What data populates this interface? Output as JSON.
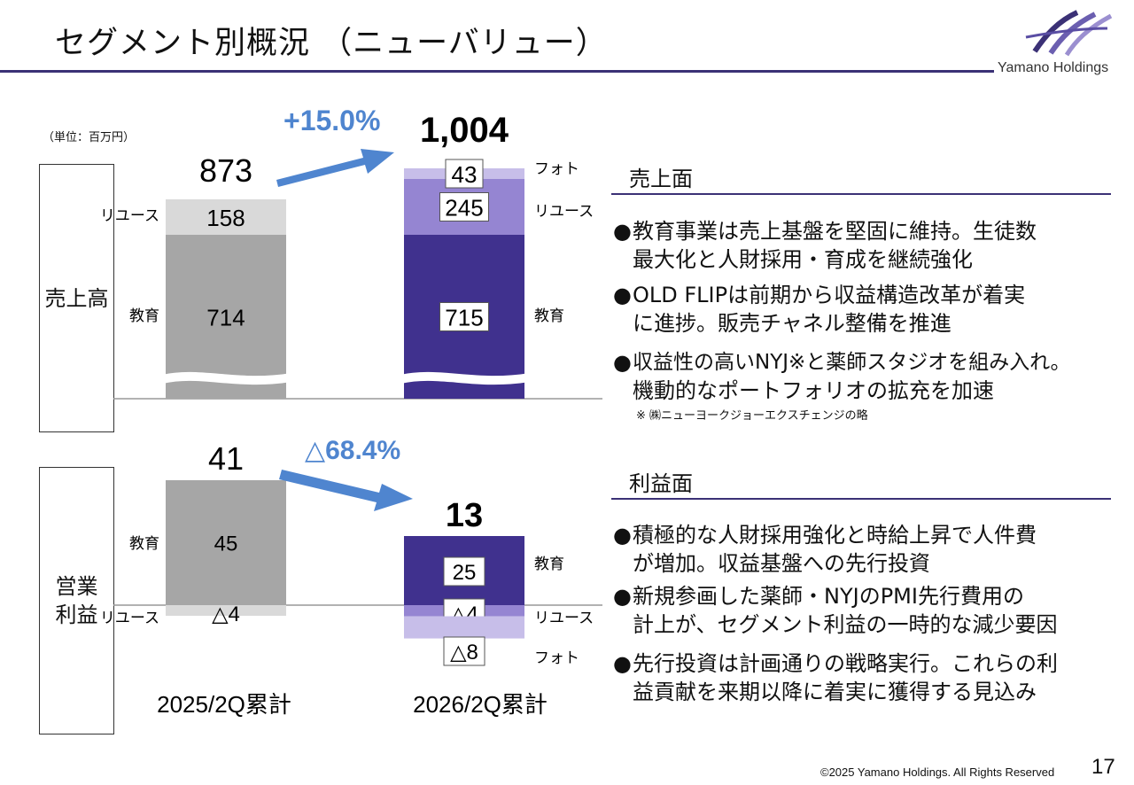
{
  "title": "セグメント別概況 （ニューバリュー）",
  "brand": "Yamano Holdings",
  "unit": "（単位：百万円）",
  "row_labels": {
    "sales": "売上高",
    "profit_l1": "営業",
    "profit_l2": "利益"
  },
  "chart_data": [
    {
      "type": "bar",
      "title": "売上高",
      "categories": [
        "2025/2Q累計",
        "2026/2Q累計"
      ],
      "totals": [
        "873",
        "1,004"
      ],
      "growth": "+15.0%",
      "series": [
        {
          "name": "教育",
          "values": [
            714,
            715
          ],
          "labels": [
            "714",
            "715"
          ],
          "colors": [
            "#a6a6a6",
            "#40318e"
          ]
        },
        {
          "name": "リユース",
          "values": [
            158,
            245
          ],
          "labels": [
            "158",
            "245"
          ],
          "colors": [
            "#d9d9d9",
            "#9585d2"
          ]
        },
        {
          "name": "フォト",
          "values": [
            0,
            43
          ],
          "labels": [
            "",
            "43"
          ],
          "colors": [
            "#d9d9d9",
            "#c7bee9"
          ]
        }
      ],
      "axis_break": true
    },
    {
      "type": "bar",
      "title": "営業利益",
      "categories": [
        "2025/2Q累計",
        "2026/2Q累計"
      ],
      "totals": [
        "41",
        "13"
      ],
      "growth": "△68.4%",
      "series": [
        {
          "name": "教育",
          "values": [
            45,
            25
          ],
          "labels": [
            "45",
            "25"
          ],
          "colors": [
            "#a6a6a6",
            "#40318e"
          ]
        },
        {
          "name": "リユース",
          "values": [
            -4,
            -4
          ],
          "labels": [
            "△4",
            "△4"
          ],
          "colors": [
            "#d9d9d9",
            "#9585d2"
          ]
        },
        {
          "name": "フォト",
          "values": [
            0,
            -8
          ],
          "labels": [
            "",
            "△8"
          ],
          "colors": [
            "#d9d9d9",
            "#c7bee9"
          ]
        }
      ]
    }
  ],
  "sales_section": {
    "heading": "売上面",
    "bullets": [
      [
        "教育事業は売上基盤を堅固に維持。生徒数",
        "最大化と人財採用・育成を継続強化"
      ],
      [
        "OLD FLIPは前期から収益構造改革が着実",
        "に進捗。販売チャネル整備を推進"
      ],
      [
        "収益性の高いNYJ※と薬師スタジオを組み入れ。",
        "機動的なポートフォリオの拡充を加速"
      ]
    ],
    "note": "※ ㈱ニューヨークジョーエクスチェンジの略"
  },
  "profit_section": {
    "heading": "利益面",
    "bullets": [
      [
        "積極的な人財採用強化と時給上昇で人件費",
        "が増加。収益基盤への先行投資"
      ],
      [
        "新規参画した薬師・NYJのPMI先行費用の",
        "計上が、セグメント利益の一時的な減少要因"
      ],
      [
        "先行投資は計画通りの戦略実行。これらの利",
        "益貢献を来期以降に着実に獲得する見込み"
      ]
    ]
  },
  "bullet_glyph": "●",
  "footer": "©2025 Yamano Holdings. All Rights Reserved",
  "page_number": "17",
  "colors": {
    "accent": "#3b3176",
    "arrow": "#4f85cf",
    "growth_text": "#4f85cf"
  }
}
